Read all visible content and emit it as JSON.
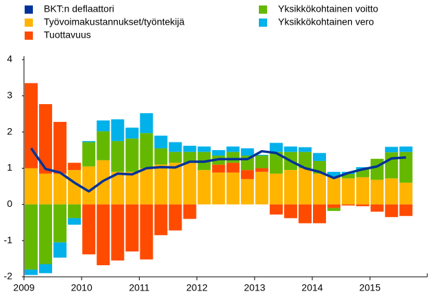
{
  "chart_data": {
    "type": "bar",
    "categories": [
      "2009",
      null,
      null,
      null,
      "2010",
      null,
      null,
      null,
      "2011",
      null,
      null,
      null,
      "2012",
      null,
      null,
      null,
      "2013",
      null,
      null,
      null,
      "2014",
      null,
      null,
      null,
      "2015",
      null,
      null
    ],
    "series": [
      {
        "name": "BKT:n deflaattori",
        "color": "#003299",
        "type": "line",
        "values": [
          1.55,
          0.98,
          0.88,
          0.6,
          0.36,
          0.65,
          0.85,
          0.83,
          1.0,
          1.03,
          1.02,
          1.18,
          1.18,
          1.25,
          1.25,
          1.25,
          1.47,
          1.42,
          1.2,
          1.0,
          0.9,
          0.73,
          0.87,
          0.97,
          1.05,
          1.27,
          1.3
        ]
      },
      {
        "name": "Työvoimakustannukset/työntekijä",
        "color": "#ffb400",
        "values": [
          1.0,
          0.85,
          0.85,
          0.95,
          1.05,
          1.22,
          0.9,
          0.9,
          1.0,
          1.1,
          1.15,
          1.15,
          0.95,
          0.88,
          0.88,
          0.7,
          0.9,
          0.85,
          0.95,
          1.0,
          0.85,
          0.77,
          0.72,
          0.75,
          0.68,
          0.72,
          0.6
        ]
      },
      {
        "name": "Tuottavuus",
        "color": "#ff4b00",
        "values": [
          2.35,
          1.92,
          1.43,
          0.2,
          -1.38,
          -1.68,
          -1.55,
          -1.3,
          -1.52,
          -0.85,
          -0.72,
          -0.4,
          0.0,
          0.22,
          0.27,
          0.25,
          0.1,
          -0.28,
          -0.38,
          -0.52,
          -0.52,
          -0.1,
          -0.03,
          -0.05,
          -0.2,
          -0.35,
          -0.32
        ]
      },
      {
        "name": "Yksikkökohtainen voitto",
        "color": "#65b800",
        "values": [
          -1.8,
          -1.65,
          -1.05,
          -0.38,
          0.67,
          0.8,
          0.85,
          0.92,
          0.97,
          0.45,
          0.3,
          0.3,
          0.5,
          0.25,
          0.3,
          0.4,
          0.35,
          0.6,
          0.5,
          0.45,
          0.35,
          -0.08,
          0.12,
          0.22,
          0.58,
          0.72,
          0.85
        ]
      },
      {
        "name": "Yksikkökohtainen vero",
        "color": "#00b1ea",
        "values": [
          -0.15,
          -0.25,
          -0.42,
          -0.18,
          0.03,
          0.3,
          0.6,
          0.3,
          0.55,
          0.35,
          0.27,
          0.17,
          0.15,
          0.15,
          0.15,
          0.2,
          0.02,
          0.25,
          0.15,
          0.13,
          0.22,
          0.13,
          0.06,
          0.06,
          0.0,
          0.15,
          0.15
        ]
      }
    ],
    "ylim": [
      -2,
      4
    ],
    "yticks": [
      -2,
      -1,
      0,
      1,
      2,
      3,
      4
    ],
    "stacked": true,
    "grid": false
  }
}
